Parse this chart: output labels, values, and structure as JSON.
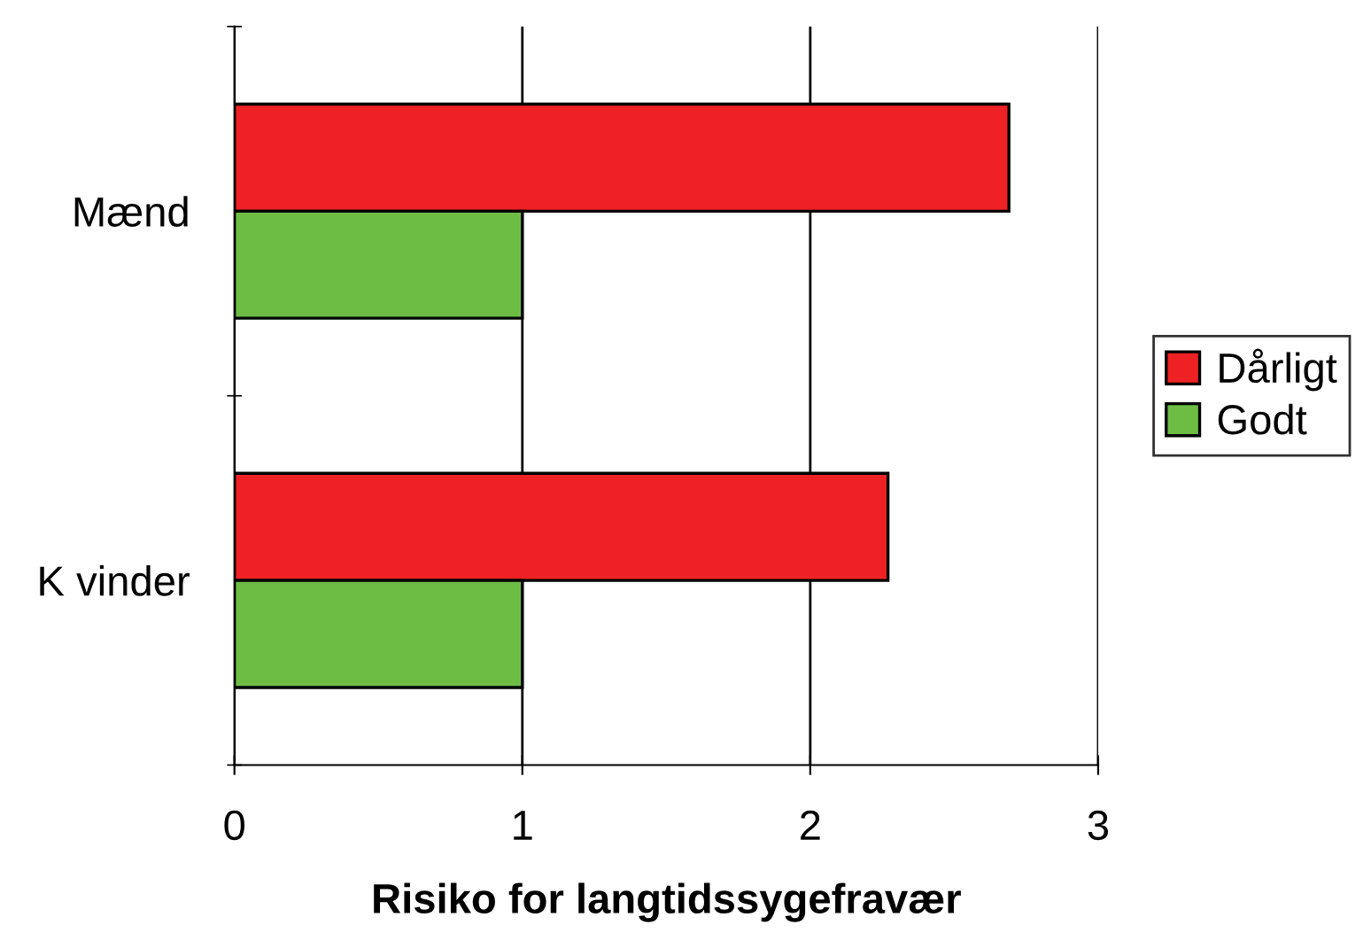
{
  "chart_data": {
    "type": "bar",
    "orientation": "horizontal",
    "xlabel": "Risiko for langtidssygefravær",
    "categories": [
      "Mænd",
      "K vinder"
    ],
    "series": [
      {
        "name": "Dårligt",
        "color": "#ee2224",
        "values": [
          2.69,
          2.27
        ]
      },
      {
        "name": "Godt",
        "color": "#6dbd45",
        "values": [
          1.0,
          1.0
        ]
      }
    ],
    "xlim": [
      0,
      3
    ],
    "xticks": [
      0,
      1,
      2,
      3
    ],
    "grid": "x",
    "legend": "right"
  }
}
